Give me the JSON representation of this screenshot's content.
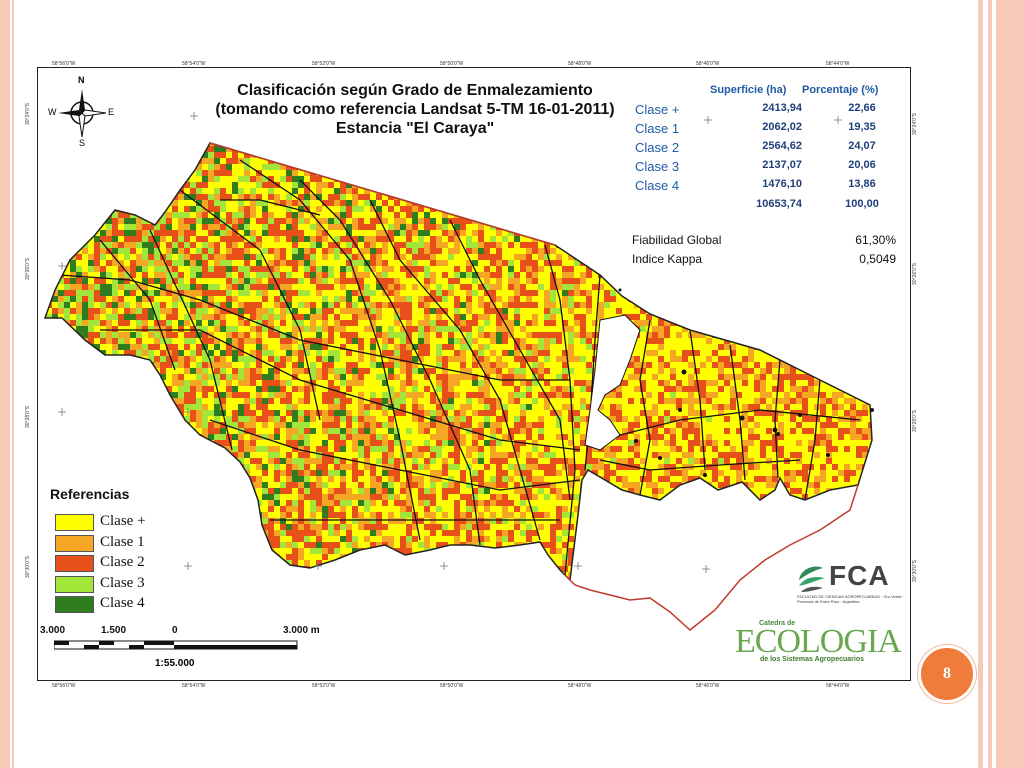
{
  "map": {
    "title_lines": [
      "Clasificación según Grado de Enmalezamiento",
      "(tomando como referencia Landsat 5-TM 16-01-2011)",
      "Estancia \"El Caraya\""
    ],
    "compass": {
      "n": "N",
      "s": "S",
      "e": "E",
      "w": "W"
    },
    "stats": {
      "col_superficie": "Superficie (ha)",
      "col_porcentaje": "Porcentaje (%)",
      "rows": [
        {
          "clase": "Clase +",
          "superficie": "2413,94",
          "porcentaje": "22,66"
        },
        {
          "clase": "Clase 1",
          "superficie": "2062,02",
          "porcentaje": "19,35"
        },
        {
          "clase": "Clase 2",
          "superficie": "2564,62",
          "porcentaje": "24,07"
        },
        {
          "clase": "Clase 3",
          "superficie": "2137,07",
          "porcentaje": "20,06"
        },
        {
          "clase": "Clase 4",
          "superficie": "1476,10",
          "porcentaje": "13,86"
        }
      ],
      "total_superficie": "10653,74",
      "total_porcentaje": "100,00"
    },
    "fiabilidad": {
      "label": "Fiabilidad Global",
      "value": "61,30%"
    },
    "kappa": {
      "label": "Indice Kappa",
      "value": "0,5049"
    },
    "legend": {
      "title": "Referencias",
      "items": [
        {
          "label": "Clase +",
          "color": "#ffff00"
        },
        {
          "label": "Clase 1",
          "color": "#f5a623"
        },
        {
          "label": "Clase 2",
          "color": "#e8501a"
        },
        {
          "label": "Clase 3",
          "color": "#a2e63a"
        },
        {
          "label": "Clase 4",
          "color": "#2f7d1e"
        }
      ]
    },
    "scale_bar": {
      "labels": [
        "3.000",
        "1.500",
        "0",
        "3.000 m"
      ],
      "ratio": "1:55.000"
    },
    "coords_top": [
      "58°56'0\"W",
      "58°54'0\"W",
      "58°52'0\"W",
      "58°50'0\"W",
      "58°48'0\"W",
      "58°46'0\"W",
      "58°44'0\"W"
    ],
    "coords_bottom": [
      "58°56'0\"W",
      "58°54'0\"W",
      "58°52'0\"W",
      "58°50'0\"W",
      "58°48'0\"W",
      "58°46'0\"W",
      "58°44'0\"W"
    ],
    "coords_left": [
      "30°24'0\"S",
      "30°26'0\"S",
      "30°28'0\"S",
      "30°30'0\"S"
    ],
    "coords_right": [
      "30°24'0\"S",
      "30°26'0\"S",
      "30°28'0\"S",
      "30°30'0\"S"
    ]
  },
  "logos": {
    "fca": "FCA",
    "fca_sub": "FACULTAD DE CIENCIAS AGROPECUARIAS · Oro Verde · Provincia de Entre Ríos · Argentina",
    "eco_top": "Catedra de",
    "eco_word": "ECOLOGIA",
    "eco_sub": "de los Sistemas Agropecuarios"
  },
  "slide": {
    "page_number": "8"
  }
}
